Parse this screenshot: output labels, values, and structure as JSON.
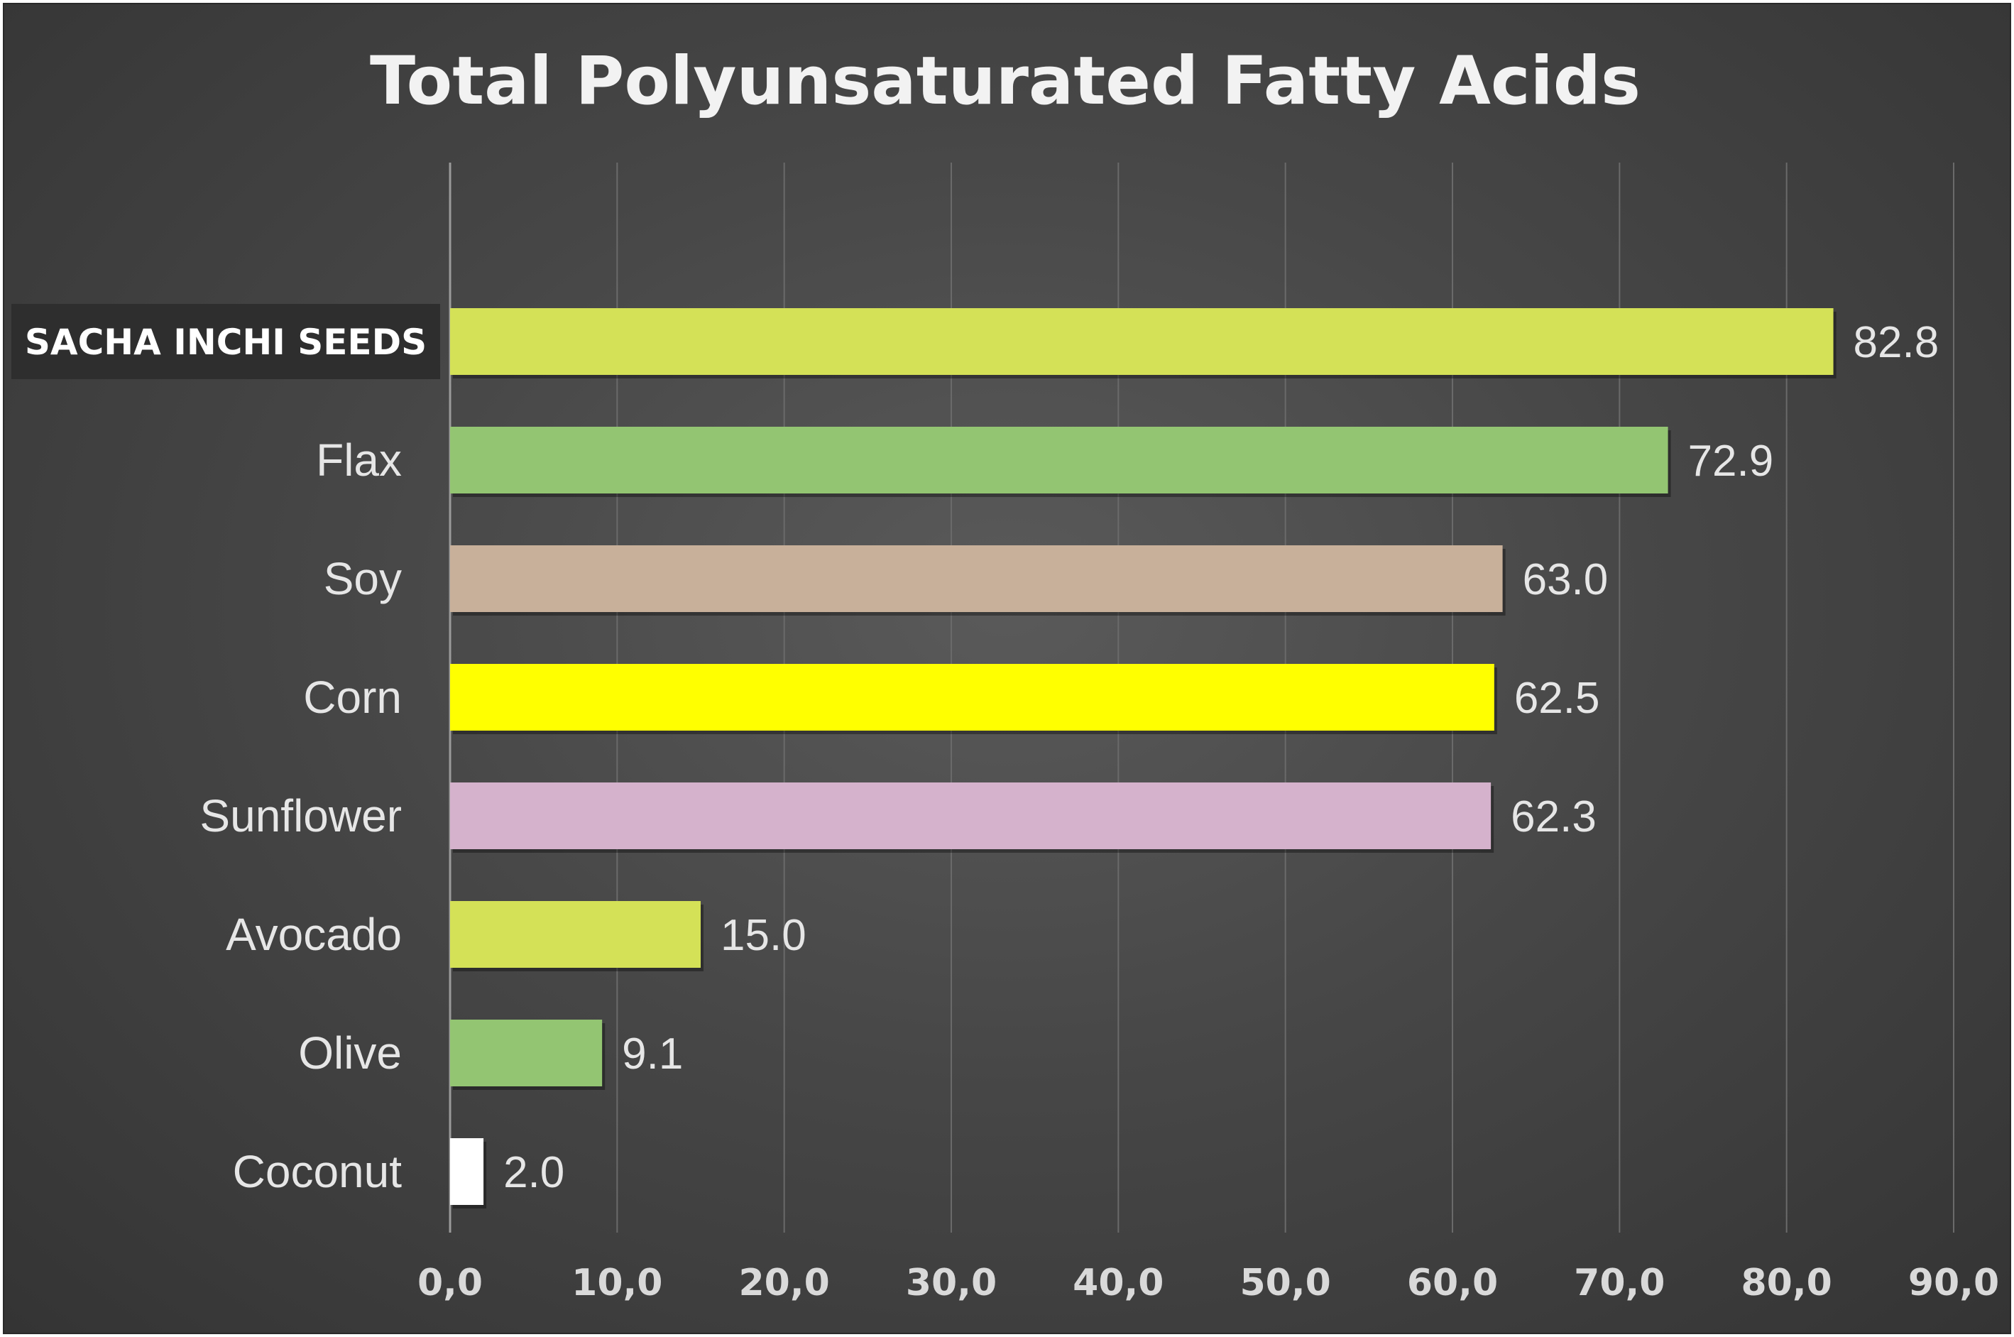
{
  "chart_data": {
    "type": "bar",
    "orientation": "horizontal",
    "title": "Total Polyunsaturated Fatty Acids",
    "xlabel": "",
    "ylabel": "",
    "categories": [
      "SACHA INCHI SEEDS",
      "Flax",
      "Soy",
      "Corn",
      "Sunflower",
      "Avocado",
      "Olive",
      "Coconut"
    ],
    "values": [
      82.8,
      72.9,
      63.0,
      62.5,
      62.3,
      15.0,
      9.1,
      2.0
    ],
    "value_labels": [
      "82.8",
      "72.9",
      "63.0",
      "62.5",
      "62.3",
      "15.0",
      "9.1",
      "2.0"
    ],
    "bar_colors": [
      "#d4e157",
      "#93c572",
      "#c8b09a",
      "#ffff00",
      "#d5b2cc",
      "#d4e157",
      "#93c572",
      "#ffffff"
    ],
    "highlighted_category": "SACHA INCHI SEEDS",
    "xlim": [
      0,
      90
    ],
    "x_ticks": [
      0,
      10,
      20,
      30,
      40,
      50,
      60,
      70,
      80,
      90
    ],
    "x_tick_labels": [
      "0,0",
      "10,0",
      "20,0",
      "30,0",
      "40,0",
      "50,0",
      "60,0",
      "70,0",
      "80,0",
      "90,0"
    ],
    "grid": "vertical",
    "legend": "none"
  },
  "colors": {
    "background": "#474747",
    "title": "#f2f2f2",
    "text": "#e6e6e6",
    "gridline": "#6a6a6a",
    "axis": "#9a9a9a",
    "highlight_box": "#2e2e2e"
  }
}
